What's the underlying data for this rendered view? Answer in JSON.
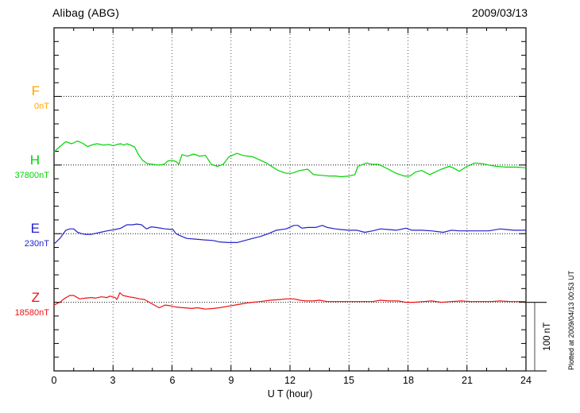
{
  "header": {
    "title": "Alibag (ABG)",
    "date": "2009/03/13"
  },
  "chart_data": {
    "type": "line",
    "title": "Alibag (ABG)",
    "date_label": "2009/03/13",
    "xlabel": "U T (hour)",
    "x_range": [
      0,
      24
    ],
    "x_ticks": [
      0,
      3,
      6,
      9,
      12,
      15,
      18,
      21,
      24
    ],
    "minor_x_step_hours": 1,
    "grid": "dotted",
    "y_division_nT": 100,
    "scale_bar": {
      "label": "100 nT",
      "value_nT": 100
    },
    "plotted_at": "Plotted at 2009/04/13 00:53 UT",
    "series": [
      {
        "name": "F",
        "baseline_label": "0nT",
        "baseline_value": 0,
        "color": "#ffa500",
        "points": []
      },
      {
        "name": "H",
        "baseline_label": "37800nT",
        "baseline_value": 37800,
        "color": "#00d400",
        "points": [
          [
            0,
            19
          ],
          [
            0.3,
            27
          ],
          [
            0.6,
            34
          ],
          [
            0.9,
            31
          ],
          [
            1.2,
            35
          ],
          [
            1.5,
            31
          ],
          [
            1.7,
            27
          ],
          [
            2,
            30
          ],
          [
            2.2,
            31
          ],
          [
            2.5,
            29
          ],
          [
            2.8,
            30
          ],
          [
            3,
            28
          ],
          [
            3.2,
            30
          ],
          [
            3.4,
            31
          ],
          [
            3.55,
            29
          ],
          [
            3.7,
            31
          ],
          [
            3.9,
            29
          ],
          [
            4.1,
            26
          ],
          [
            4.3,
            15
          ],
          [
            4.5,
            7
          ],
          [
            4.75,
            2
          ],
          [
            5,
            1
          ],
          [
            5.3,
            0
          ],
          [
            5.6,
            1
          ],
          [
            5.8,
            6
          ],
          [
            6,
            7
          ],
          [
            6.2,
            5
          ],
          [
            6.35,
            1
          ],
          [
            6.5,
            15
          ],
          [
            6.8,
            13
          ],
          [
            7.1,
            16
          ],
          [
            7.4,
            13
          ],
          [
            7.7,
            14
          ],
          [
            8,
            1
          ],
          [
            8.3,
            -2
          ],
          [
            8.6,
            1
          ],
          [
            8.9,
            12
          ],
          [
            9.3,
            17
          ],
          [
            9.6,
            14
          ],
          [
            10.1,
            12
          ],
          [
            10.5,
            7
          ],
          [
            10.8,
            3
          ],
          [
            11.4,
            -8
          ],
          [
            11.8,
            -12
          ],
          [
            12.1,
            -12
          ],
          [
            12.5,
            -8
          ],
          [
            12.9,
            -6
          ],
          [
            13.2,
            -14
          ],
          [
            13.6,
            -15
          ],
          [
            14,
            -16
          ],
          [
            14.3,
            -16
          ],
          [
            14.6,
            -17
          ],
          [
            15,
            -16
          ],
          [
            15.3,
            -14
          ],
          [
            15.45,
            -2
          ],
          [
            15.7,
            1
          ],
          [
            15.9,
            3
          ],
          [
            16.2,
            1
          ],
          [
            16.5,
            1
          ],
          [
            17,
            -6
          ],
          [
            17.4,
            -12
          ],
          [
            17.8,
            -16
          ],
          [
            18.1,
            -16
          ],
          [
            18.4,
            -10
          ],
          [
            18.7,
            -8
          ],
          [
            19.1,
            -14
          ],
          [
            19.4,
            -10
          ],
          [
            19.7,
            -6
          ],
          [
            20.1,
            -2
          ],
          [
            20.3,
            -4
          ],
          [
            20.6,
            -9
          ],
          [
            21,
            -2
          ],
          [
            21.4,
            3
          ],
          [
            21.8,
            2
          ],
          [
            22.1,
            0
          ],
          [
            22.5,
            -2
          ],
          [
            23,
            -3
          ],
          [
            23.5,
            -3
          ],
          [
            24,
            -4
          ]
        ]
      },
      {
        "name": "E",
        "baseline_label": "230nT",
        "baseline_value": 230,
        "color": "#2222cc",
        "points": [
          [
            0,
            -15
          ],
          [
            0.3,
            -7
          ],
          [
            0.6,
            5
          ],
          [
            0.8,
            7
          ],
          [
            1,
            7
          ],
          [
            1.2,
            2
          ],
          [
            1.4,
            0
          ],
          [
            1.6,
            -1
          ],
          [
            1.9,
            -1
          ],
          [
            2.2,
            1
          ],
          [
            2.7,
            4
          ],
          [
            3.1,
            6
          ],
          [
            3.4,
            8
          ],
          [
            3.7,
            13
          ],
          [
            4,
            13
          ],
          [
            4.2,
            14
          ],
          [
            4.45,
            13
          ],
          [
            4.7,
            7
          ],
          [
            4.95,
            10
          ],
          [
            5.2,
            9
          ],
          [
            5.65,
            7
          ],
          [
            6.05,
            6
          ],
          [
            6.2,
            0
          ],
          [
            6.5,
            -4
          ],
          [
            6.75,
            -7
          ],
          [
            7.2,
            -8
          ],
          [
            7.6,
            -9
          ],
          [
            8.1,
            -10
          ],
          [
            8.4,
            -12
          ],
          [
            8.9,
            -13
          ],
          [
            9.3,
            -13
          ],
          [
            9.7,
            -10
          ],
          [
            10.1,
            -7
          ],
          [
            10.5,
            -4
          ],
          [
            10.9,
            0
          ],
          [
            11.3,
            5
          ],
          [
            11.8,
            7
          ],
          [
            12.2,
            12
          ],
          [
            12.4,
            12
          ],
          [
            12.6,
            8
          ],
          [
            12.9,
            9
          ],
          [
            13.3,
            9
          ],
          [
            13.65,
            12
          ],
          [
            13.9,
            9
          ],
          [
            14.3,
            7
          ],
          [
            14.6,
            6
          ],
          [
            15,
            5
          ],
          [
            15.4,
            5
          ],
          [
            15.8,
            2
          ],
          [
            16.2,
            4
          ],
          [
            16.6,
            7
          ],
          [
            17,
            6
          ],
          [
            17.4,
            5
          ],
          [
            17.9,
            8
          ],
          [
            18.2,
            5
          ],
          [
            18.7,
            5
          ],
          [
            19.2,
            4
          ],
          [
            19.8,
            2
          ],
          [
            20.2,
            5
          ],
          [
            20.6,
            4
          ],
          [
            21.1,
            4
          ],
          [
            21.6,
            4
          ],
          [
            22.1,
            4
          ],
          [
            22.7,
            7
          ],
          [
            23,
            6
          ],
          [
            23.4,
            5
          ],
          [
            24,
            5
          ]
        ]
      },
      {
        "name": "Z",
        "baseline_label": "18580nT",
        "baseline_value": 18580,
        "color": "#ee1111",
        "points": [
          [
            0,
            -4
          ],
          [
            0.3,
            0
          ],
          [
            0.5,
            5
          ],
          [
            0.8,
            10
          ],
          [
            1,
            10
          ],
          [
            1.3,
            5
          ],
          [
            1.6,
            6
          ],
          [
            1.9,
            7
          ],
          [
            2.1,
            6
          ],
          [
            2.4,
            8
          ],
          [
            2.7,
            7
          ],
          [
            2.85,
            9
          ],
          [
            3.1,
            7
          ],
          [
            3.2,
            4
          ],
          [
            3.35,
            14
          ],
          [
            3.5,
            10
          ],
          [
            3.8,
            8
          ],
          [
            4.05,
            7
          ],
          [
            4.35,
            5
          ],
          [
            4.6,
            4
          ],
          [
            4.85,
            0
          ],
          [
            5.1,
            -4
          ],
          [
            5.35,
            -8
          ],
          [
            5.65,
            -4
          ],
          [
            5.9,
            -5
          ],
          [
            6.2,
            -7
          ],
          [
            6.6,
            -8
          ],
          [
            7,
            -9
          ],
          [
            7.3,
            -8
          ],
          [
            7.7,
            -10
          ],
          [
            8.1,
            -9
          ],
          [
            8.4,
            -8
          ],
          [
            8.8,
            -6
          ],
          [
            9.2,
            -4
          ],
          [
            9.8,
            -1
          ],
          [
            10.1,
            0
          ],
          [
            10.5,
            1
          ],
          [
            11,
            3
          ],
          [
            11.5,
            4
          ],
          [
            11.85,
            5
          ],
          [
            12.2,
            5
          ],
          [
            12.5,
            3
          ],
          [
            12.8,
            2
          ],
          [
            13.2,
            2
          ],
          [
            13.5,
            3
          ],
          [
            13.9,
            1
          ],
          [
            14.3,
            1
          ],
          [
            14.8,
            1
          ],
          [
            15.2,
            1
          ],
          [
            15.7,
            1
          ],
          [
            16.2,
            1
          ],
          [
            16.6,
            3
          ],
          [
            17,
            2
          ],
          [
            17.5,
            2
          ],
          [
            17.9,
            0
          ],
          [
            18.3,
            0
          ],
          [
            18.8,
            1
          ],
          [
            19.2,
            2
          ],
          [
            19.7,
            0
          ],
          [
            20.2,
            1
          ],
          [
            20.7,
            2
          ],
          [
            21.2,
            1
          ],
          [
            21.7,
            1
          ],
          [
            22.2,
            1
          ],
          [
            22.7,
            2
          ],
          [
            23.2,
            1
          ],
          [
            23.6,
            1
          ],
          [
            24,
            1
          ]
        ]
      }
    ]
  }
}
